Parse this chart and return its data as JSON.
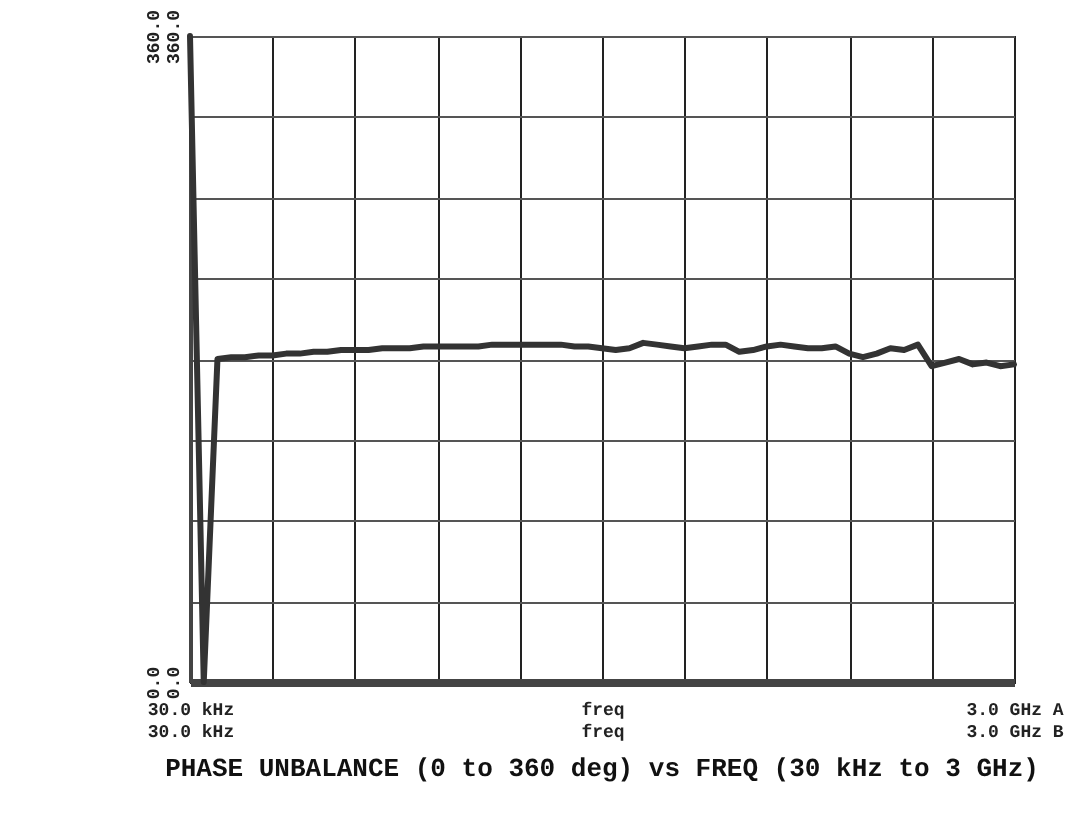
{
  "chart_data": {
    "type": "line",
    "title": "PHASE UNBALANCE (0 to 360 deg) vs FREQ (30 kHz to 3 GHz)",
    "categories": [
      "30.0 kHz\n30.0 kHz",
      null,
      null,
      null,
      null,
      null,
      null,
      null,
      null,
      null,
      null,
      null,
      null,
      null,
      null,
      null,
      null,
      null,
      null,
      null,
      null,
      null,
      null,
      null,
      null,
      null,
      null,
      null,
      null,
      null,
      "freq\nfreq",
      null,
      null,
      null,
      null,
      null,
      null,
      null,
      null,
      null,
      null,
      null,
      null,
      null,
      null,
      null,
      null,
      null,
      null,
      null,
      null,
      null,
      null,
      null,
      null,
      null,
      null,
      null,
      null,
      null,
      "3.0 GHz A\n3.0 GHz B"
    ],
    "series": [
      {
        "color": "#333333",
        "values": [
          360,
          0,
          180,
          181,
          181,
          182,
          182,
          183,
          183,
          184,
          184,
          185,
          185,
          185,
          186,
          186,
          186,
          187,
          187,
          187,
          187,
          187,
          188,
          188,
          188,
          188,
          188,
          188,
          187,
          187,
          186,
          185,
          186,
          189,
          188,
          187,
          186,
          187,
          188,
          188,
          184,
          185,
          187,
          188,
          187,
          186,
          186,
          187,
          183,
          181,
          183,
          186,
          185,
          188,
          176,
          178,
          180,
          177,
          178,
          176,
          177
        ]
      }
    ],
    "ylim": [
      0,
      360
    ],
    "yticks": [
      {
        "value": 0,
        "label": "0.0"
      },
      {
        "value": 45,
        "label": null
      },
      {
        "value": 90,
        "label": null
      },
      {
        "value": 135,
        "label": null
      },
      {
        "value": 180,
        "label": null
      },
      {
        "value": 225,
        "label": null
      },
      {
        "value": 270,
        "label": null
      },
      {
        "value": 315,
        "label": null
      },
      {
        "value": 360,
        "label": "360.0"
      }
    ],
    "y2lim": [
      0,
      360
    ],
    "y2ticks": [
      {
        "value": 0,
        "label": "0.0"
      },
      {
        "value": 360,
        "label": "360.0"
      }
    ],
    "grid": true
  }
}
